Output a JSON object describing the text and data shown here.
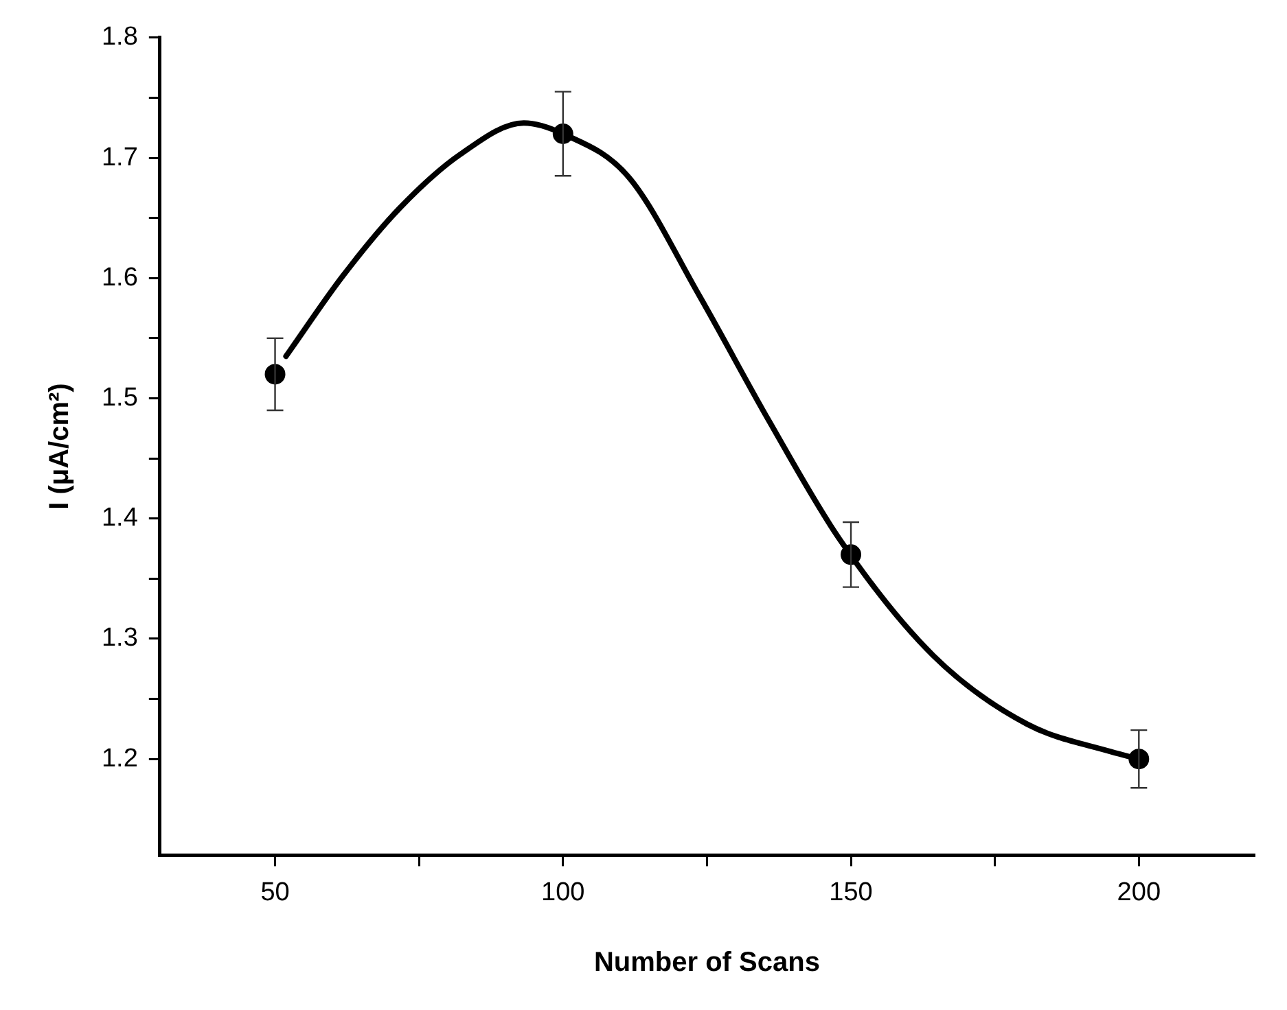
{
  "chart_data": {
    "type": "scatter",
    "xlabel": "Number of Scans",
    "ylabel": "I (μA/cm²)",
    "xlim": [
      30,
      220
    ],
    "ylim": [
      1.12,
      1.8
    ],
    "xticks": [
      50,
      {
        "value": 75,
        "label": null
      },
      100,
      {
        "value": 125,
        "label": null
      },
      150,
      {
        "value": 175,
        "label": null
      },
      200
    ],
    "yticks": [
      1.2,
      {
        "value": 1.25,
        "label": null
      },
      1.3,
      {
        "value": 1.35,
        "label": null
      },
      1.4,
      {
        "value": 1.45,
        "label": null
      },
      1.5,
      {
        "value": 1.55,
        "label": null
      },
      1.6,
      {
        "value": 1.65,
        "label": null
      },
      1.7,
      {
        "value": 1.75,
        "label": null
      },
      1.8
    ],
    "grid": false,
    "legend": false,
    "series": [
      {
        "type": "line",
        "color": "#000000",
        "marker": "none",
        "x": [
          51.9,
          61.8,
          71.6,
          82.2,
          93.2,
          100,
          111.4,
          123.6,
          135.8,
          148,
          164.3,
          180.6,
          195.2,
          200
        ],
        "values": [
          1.535,
          1.602,
          1.658,
          1.703,
          1.729,
          1.72,
          1.684,
          1.586,
          1.481,
          1.383,
          1.286,
          1.229,
          1.206,
          1.2
        ]
      },
      {
        "color": "#000000",
        "marker": "circle",
        "x": [
          50,
          100,
          150,
          200
        ],
        "values": [
          1.52,
          1.72,
          1.37,
          1.2
        ],
        "errors": [
          0.03,
          0.035,
          0.027,
          0.024
        ]
      }
    ]
  }
}
